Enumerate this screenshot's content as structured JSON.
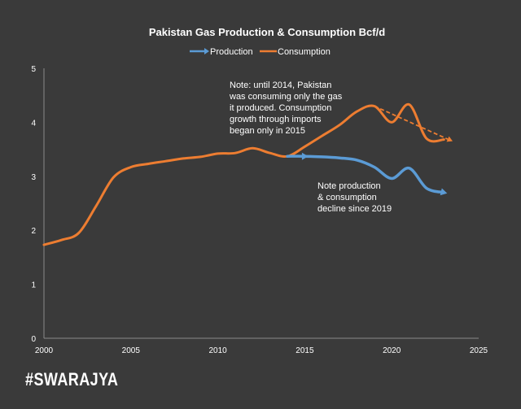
{
  "brand": "#SWARAJYA",
  "chart_data": {
    "type": "line",
    "title": "Pakistan Gas Production & Consumption Bcf/d",
    "xlabel": "",
    "ylabel": "",
    "xlim": [
      2000,
      2025
    ],
    "ylim": [
      0,
      5
    ],
    "x_ticks": [
      2000,
      2005,
      2010,
      2015,
      2020,
      2025
    ],
    "y_ticks": [
      0,
      1,
      2,
      3,
      4,
      5
    ],
    "grid": false,
    "legend": "top-center",
    "series": [
      {
        "name": "Production",
        "color": "#5b9bd5",
        "x": [
          2000,
          2001,
          2002,
          2003,
          2004,
          2005,
          2006,
          2007,
          2008,
          2009,
          2010,
          2011,
          2012,
          2013,
          2014,
          2015,
          2016,
          2017,
          2018,
          2019,
          2020,
          2021,
          2022,
          2023
        ],
        "values": [
          1.73,
          1.82,
          1.95,
          2.45,
          2.98,
          3.17,
          3.23,
          3.28,
          3.33,
          3.36,
          3.42,
          3.43,
          3.52,
          3.43,
          3.37,
          3.37,
          3.36,
          3.34,
          3.3,
          3.17,
          2.96,
          3.15,
          2.78,
          2.7
        ]
      },
      {
        "name": "Consumption",
        "color": "#ed7d31",
        "x": [
          2000,
          2001,
          2002,
          2003,
          2004,
          2005,
          2006,
          2007,
          2008,
          2009,
          2010,
          2011,
          2012,
          2013,
          2014,
          2015,
          2016,
          2017,
          2018,
          2019,
          2020,
          2021,
          2022,
          2023
        ],
        "values": [
          1.73,
          1.82,
          1.95,
          2.45,
          2.98,
          3.17,
          3.23,
          3.28,
          3.33,
          3.36,
          3.42,
          3.43,
          3.52,
          3.43,
          3.37,
          3.55,
          3.75,
          3.95,
          4.2,
          4.3,
          4.0,
          4.33,
          3.7,
          3.68
        ]
      }
    ],
    "trend_arrow": {
      "color": "#ed7d31",
      "x": [
        2019,
        2023.5
      ],
      "values": [
        4.3,
        3.65
      ]
    },
    "annotations": [
      {
        "lines": [
          "Note: until 2014, Pakistan",
          "was consuming only the gas",
          "it produced.  Consumption",
          "growth through imports",
          "began only in 2015"
        ]
      },
      {
        "lines": [
          "Note production",
          "& consumption",
          "decline since 2019"
        ]
      }
    ]
  }
}
